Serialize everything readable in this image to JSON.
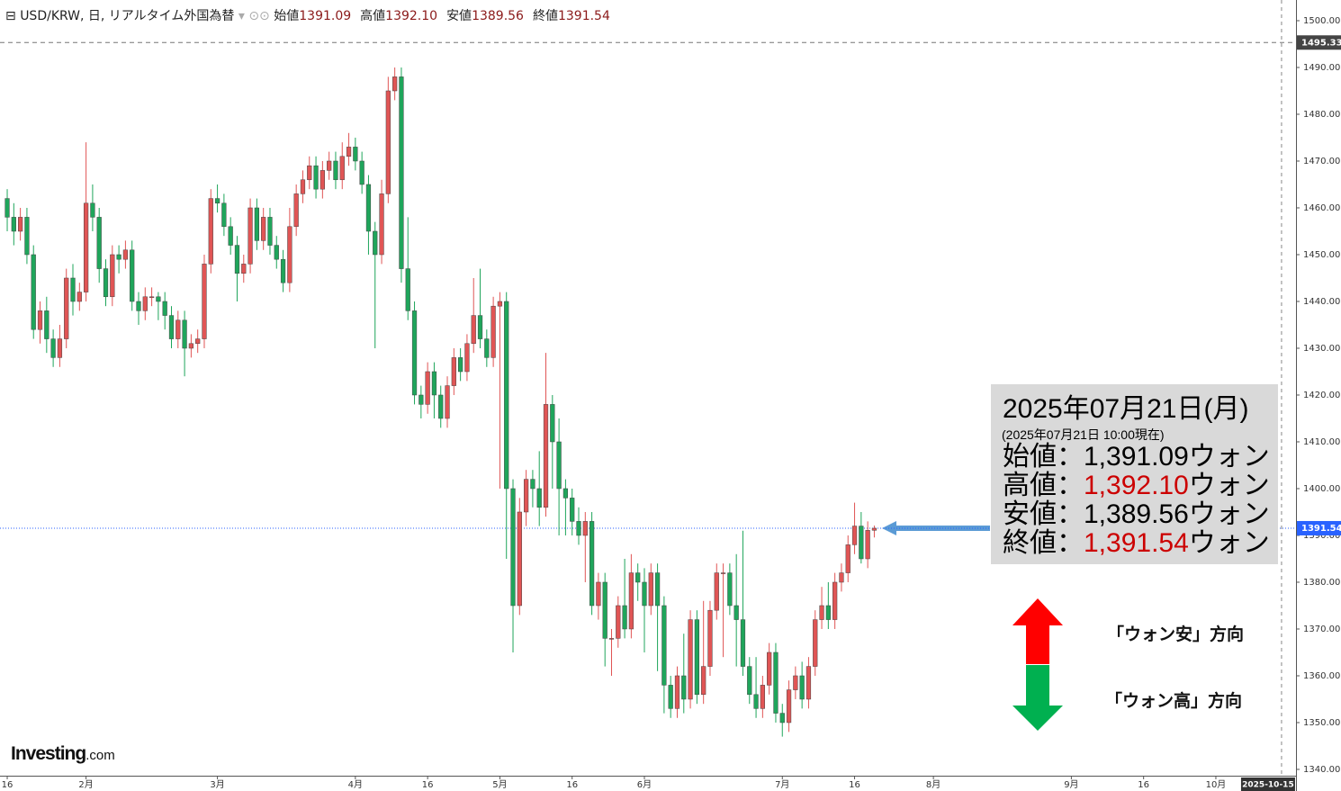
{
  "chart_data": {
    "type": "candlestick",
    "header": {
      "symbol": "USD/KRW, 日, リアルタイム外国為替",
      "ohlc": [
        {
          "label": "始値",
          "value": "1391.09"
        },
        {
          "label": "高値",
          "value": "1392.10"
        },
        {
          "label": "安値",
          "value": "1389.56"
        },
        {
          "label": "終値",
          "value": "1391.54"
        }
      ]
    },
    "up_color": "#e05555",
    "down_color": "#1fa55b",
    "ylim": [
      1338.65,
      1504.42
    ],
    "yticks": [
      {
        "value": 1340,
        "label": "1340.00"
      },
      {
        "value": 1350,
        "label": "1350.00"
      },
      {
        "value": 1360,
        "label": "1360.00"
      },
      {
        "value": 1370,
        "label": "1370.00"
      },
      {
        "value": 1380,
        "label": "1380.00"
      },
      {
        "value": 1390,
        "label": "1390.00"
      },
      {
        "value": 1400,
        "label": "1400.00"
      },
      {
        "value": 1410,
        "label": "1410.00"
      },
      {
        "value": 1420,
        "label": "1420.00"
      },
      {
        "value": 1430,
        "label": "1430.00"
      },
      {
        "value": 1440,
        "label": "1440.00"
      },
      {
        "value": 1450,
        "label": "1450.00"
      },
      {
        "value": 1460,
        "label": "1460.00"
      },
      {
        "value": 1470,
        "label": "1470.00"
      },
      {
        "value": 1480,
        "label": "1480.00"
      },
      {
        "value": 1490,
        "label": "1490.00"
      },
      {
        "value": 1500,
        "label": "1500.00"
      }
    ],
    "xlim": [
      -1.1,
      196.2
    ],
    "xticks": [
      {
        "value": 0,
        "label": "16"
      },
      {
        "value": 12,
        "label": "2月"
      },
      {
        "value": 32,
        "label": "3月"
      },
      {
        "value": 53,
        "label": "4月"
      },
      {
        "value": 64,
        "label": "16"
      },
      {
        "value": 75,
        "label": "5月"
      },
      {
        "value": 86,
        "label": "16"
      },
      {
        "value": 97,
        "label": "6月"
      },
      {
        "value": 118,
        "label": "7月"
      },
      {
        "value": 129,
        "label": "16"
      },
      {
        "value": 141,
        "label": "8月"
      },
      {
        "value": 162,
        "label": "9月"
      },
      {
        "value": 173,
        "label": "16"
      },
      {
        "value": 184,
        "label": "10月"
      }
    ],
    "cursor_x": {
      "value": 194,
      "label": "2025-10-15"
    },
    "high_line": 1495.33,
    "last_price": 1391.54,
    "open": [
      1462,
      1458,
      1455,
      1458,
      1450,
      1434,
      1438,
      1432,
      1428,
      1432,
      1445,
      1440,
      1442,
      1461,
      1458,
      1447,
      1441,
      1450,
      1449,
      1451,
      1440,
      1438,
      1441,
      1441,
      1440,
      1437,
      1432,
      1436,
      1430,
      1431,
      1432,
      1448,
      1462,
      1461,
      1456,
      1452,
      1446,
      1448,
      1460,
      1453,
      1458,
      1452,
      1449,
      1444,
      1456,
      1463,
      1466,
      1469,
      1464,
      1468,
      1470,
      1466,
      1471,
      1473,
      1470,
      1465,
      1455,
      1450,
      1463,
      1485,
      1488,
      1447,
      1438,
      1420,
      1418,
      1425,
      1420,
      1415,
      1422,
      1428,
      1425,
      1431,
      1437,
      1432,
      1428,
      1439,
      1440,
      1400,
      1375,
      1395,
      1402,
      1400,
      1396,
      1418,
      1410,
      1400,
      1398,
      1393,
      1390,
      1393,
      1375,
      1380,
      1368,
      1368,
      1375,
      1370,
      1382,
      1380,
      1375,
      1382,
      1375,
      1358,
      1353,
      1360,
      1355,
      1372,
      1356,
      1362,
      1374,
      1382,
      1382,
      1375,
      1372,
      1362,
      1356,
      1353,
      1358,
      1365,
      1352,
      1350,
      1357,
      1360,
      1355,
      1362,
      1372,
      1375,
      1372,
      1380,
      1382,
      1388,
      1392,
      1385,
      1391.09
    ],
    "high": [
      1464,
      1461,
      1460,
      1460,
      1452,
      1440,
      1441,
      1434,
      1435,
      1447,
      1448,
      1444,
      1474,
      1465,
      1460,
      1449,
      1452,
      1452,
      1453,
      1453,
      1442,
      1443,
      1443,
      1442,
      1442,
      1439,
      1438,
      1438,
      1433,
      1434,
      1450,
      1464,
      1465,
      1463,
      1458,
      1454,
      1450,
      1462,
      1462,
      1460,
      1460,
      1454,
      1451,
      1460,
      1465,
      1468,
      1471,
      1471,
      1470,
      1472,
      1472,
      1474,
      1476,
      1475,
      1472,
      1467,
      1457,
      1466,
      1488,
      1490,
      1490,
      1458,
      1440,
      1422,
      1427,
      1427,
      1422,
      1424,
      1430,
      1430,
      1433,
      1445,
      1447,
      1434,
      1441,
      1442,
      1442,
      1402,
      1398,
      1404,
      1404,
      1408,
      1429,
      1420,
      1415,
      1402,
      1400,
      1396,
      1395,
      1395,
      1382,
      1382,
      1370,
      1377,
      1385,
      1386,
      1384,
      1383,
      1384,
      1384,
      1377,
      1360,
      1362,
      1369,
      1374,
      1374,
      1376,
      1376,
      1384,
      1384,
      1384,
      1386,
      1391,
      1364,
      1364,
      1360,
      1367,
      1367,
      1354,
      1359,
      1362,
      1363,
      1364,
      1374,
      1379,
      1380,
      1382,
      1384,
      1390,
      1397,
      1395,
      1393,
      1392.1
    ],
    "low": [
      1455,
      1452,
      1453,
      1448,
      1432,
      1431,
      1429,
      1426,
      1426,
      1430,
      1437,
      1438,
      1440,
      1455,
      1444,
      1439,
      1439,
      1446,
      1447,
      1438,
      1435,
      1436,
      1439,
      1436,
      1434,
      1430,
      1430,
      1424,
      1428,
      1429,
      1430,
      1446,
      1459,
      1454,
      1450,
      1440,
      1444,
      1446,
      1451,
      1451,
      1450,
      1447,
      1442,
      1442,
      1454,
      1461,
      1464,
      1462,
      1462,
      1466,
      1464,
      1464,
      1469,
      1468,
      1463,
      1450,
      1430,
      1448,
      1461,
      1483,
      1444,
      1436,
      1418,
      1415,
      1416,
      1415,
      1413,
      1413,
      1420,
      1423,
      1423,
      1429,
      1430,
      1426,
      1426,
      1400,
      1385,
      1365,
      1373,
      1392,
      1396,
      1392,
      1394,
      1400,
      1390,
      1390,
      1390,
      1388,
      1380,
      1373,
      1372,
      1362,
      1360,
      1366,
      1368,
      1368,
      1376,
      1365,
      1373,
      1361,
      1352,
      1351,
      1351,
      1352,
      1353,
      1354,
      1354,
      1360,
      1372,
      1364,
      1373,
      1362,
      1360,
      1354,
      1351,
      1351,
      1356,
      1350,
      1347,
      1348,
      1355,
      1353,
      1353,
      1360,
      1370,
      1370,
      1370,
      1378,
      1380,
      1386,
      1384,
      1383,
      1389.56
    ],
    "close": [
      1458,
      1455,
      1458,
      1450,
      1434,
      1438,
      1432,
      1428,
      1432,
      1445,
      1440,
      1442,
      1461,
      1458,
      1447,
      1441,
      1450,
      1449,
      1451,
      1440,
      1438,
      1441,
      1441,
      1440,
      1437,
      1432,
      1436,
      1430,
      1431,
      1432,
      1448,
      1462,
      1461,
      1456,
      1452,
      1446,
      1448,
      1460,
      1453,
      1458,
      1452,
      1449,
      1444,
      1456,
      1463,
      1466,
      1469,
      1464,
      1468,
      1470,
      1466,
      1471,
      1473,
      1470,
      1465,
      1455,
      1450,
      1463,
      1485,
      1488,
      1447,
      1438,
      1420,
      1418,
      1425,
      1420,
      1415,
      1422,
      1428,
      1425,
      1431,
      1437,
      1432,
      1428,
      1439,
      1440,
      1400,
      1375,
      1395,
      1402,
      1400,
      1396,
      1418,
      1410,
      1400,
      1398,
      1393,
      1390,
      1393,
      1375,
      1380,
      1368,
      1368,
      1375,
      1370,
      1382,
      1380,
      1375,
      1382,
      1375,
      1358,
      1353,
      1360,
      1355,
      1372,
      1356,
      1362,
      1374,
      1382,
      1382,
      1375,
      1372,
      1362,
      1356,
      1353,
      1358,
      1365,
      1352,
      1350,
      1357,
      1360,
      1355,
      1362,
      1372,
      1375,
      1372,
      1380,
      1382,
      1388,
      1392,
      1385,
      1391.09,
      1391.54
    ],
    "annotation": {
      "title": "2025年07月21日(月)",
      "subtitle": "(2025年07月21日 10:00現在)",
      "rows": [
        {
          "label": "始値：",
          "value": "1,391.09",
          "unit": "ウォン",
          "value_color": "#000000"
        },
        {
          "label": "高値：",
          "value": "1,392.10",
          "unit": "ウォン",
          "value_color": "#cc0000"
        },
        {
          "label": "安値：",
          "value": "1,389.56",
          "unit": "ウォン",
          "value_color": "#000000"
        },
        {
          "label": "終値：",
          "value": "1,391.54",
          "unit": "ウォン",
          "value_color": "#cc0000"
        }
      ]
    },
    "direction_up": "「ウォン安」方向",
    "direction_down": "「ウォン高」方向",
    "logo": {
      "main": "Investing",
      "suffix": ".com"
    }
  }
}
